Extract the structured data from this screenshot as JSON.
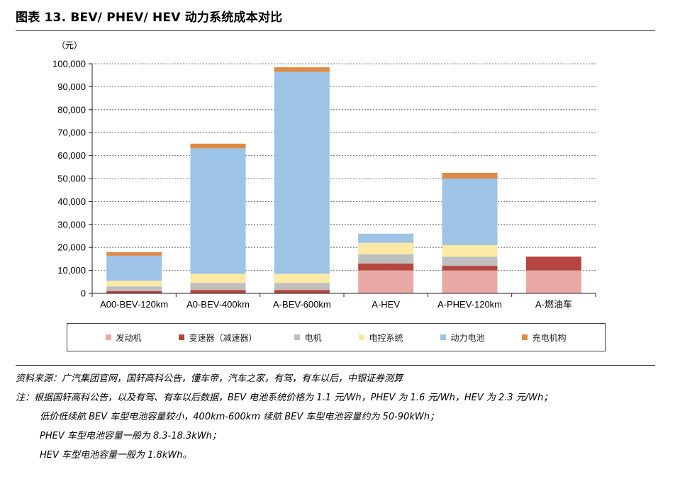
{
  "title": "图表 13. BEV/ PHEV/ HEV 动力系统成本对比",
  "chart_data": {
    "type": "bar",
    "stacked": true,
    "unit": "（元）",
    "categories": [
      "A00-BEV-120km",
      "A0-BEV-400km",
      "A-BEV-600km",
      "A-HEV",
      "A-PHEV-120km",
      "A-燃油车"
    ],
    "ylim": [
      0,
      100000
    ],
    "yticks": [
      "0",
      "10,000",
      "20,000",
      "30,000",
      "40,000",
      "50,000",
      "60,000",
      "70,000",
      "80,000",
      "90,000",
      "100,000"
    ],
    "grid": true,
    "legend_position": "bottom",
    "series": [
      {
        "name": "发动机",
        "color": "#E8A9A6",
        "values": [
          0,
          0,
          0,
          10000,
          10000,
          10000
        ]
      },
      {
        "name": "变速器（减速器）",
        "color": "#B5453F",
        "values": [
          1000,
          1500,
          1500,
          3000,
          2000,
          6000
        ]
      },
      {
        "name": "电机",
        "color": "#BFBFBF",
        "values": [
          2000,
          3000,
          3000,
          4000,
          4000,
          0
        ]
      },
      {
        "name": "电控系统",
        "color": "#FDE9A6",
        "values": [
          2500,
          4000,
          4000,
          5000,
          5000,
          0
        ]
      },
      {
        "name": "动力电池",
        "color": "#9DC3E6",
        "values": [
          10900,
          54700,
          88000,
          4000,
          29000,
          0
        ]
      },
      {
        "name": "充电机构",
        "color": "#DD8A46",
        "values": [
          1500,
          2000,
          2000,
          0,
          2500,
          0
        ]
      }
    ]
  },
  "notes": {
    "source": "资料来源：广汽集团官网，国轩高科公告，懂车帝，汽车之家，有驾，有车以后，中银证券测算",
    "note_1": "注：根据国轩高科公告，以及有驾、有车以后数据，BEV 电池系统价格为 1.1 元/Wh，PHEV 为 1.6 元/Wh，HEV 为 2.3 元/Wh；",
    "note_2": "低价低续航 BEV 车型电池容量较小，400km-600km 续航 BEV 车型电池容量约为 50-90kWh；",
    "note_3": "PHEV 车型电池容量一般为 8.3-18.3kWh；",
    "note_4": "HEV 车型电池容量一般为 1.8kWh。"
  }
}
